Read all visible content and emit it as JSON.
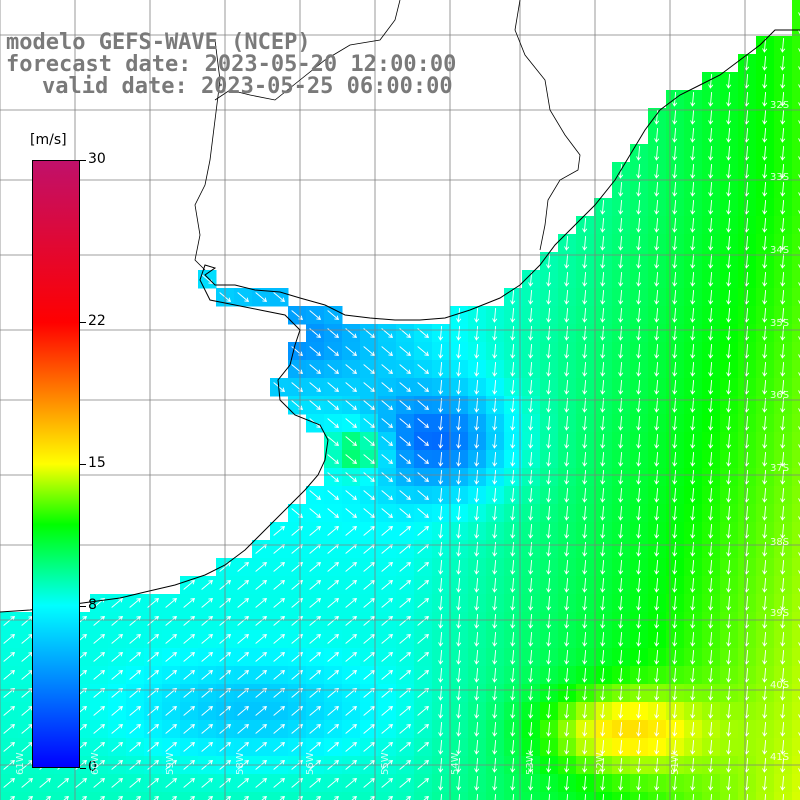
{
  "titles": {
    "line1": "modelo GEFS-WAVE (NCEP)",
    "line2": "forecast date: 2023-05-20 12:00:00",
    "line3": "valid date: 2023-05-25 06:00:00"
  },
  "colorbar": {
    "unit": "[m/s]",
    "ticks": [
      "30",
      "22",
      "15",
      "8",
      "0"
    ],
    "tick_values": [
      30,
      22,
      15,
      8,
      0
    ],
    "min": 0,
    "max": 30,
    "stops": [
      {
        "value": 0,
        "color": "#0000ff"
      },
      {
        "value": 8,
        "color": "#00ffff"
      },
      {
        "value": 12,
        "color": "#00ff00"
      },
      {
        "value": 15,
        "color": "#ffff00"
      },
      {
        "value": 22,
        "color": "#ff0000"
      },
      {
        "value": 30,
        "color": "#c0106a"
      }
    ]
  },
  "map": {
    "lat_labels": [
      "32S",
      "33S",
      "34S",
      "35S",
      "36S",
      "37S",
      "38S",
      "39S",
      "40S",
      "41S"
    ],
    "lat_values": [
      -32,
      -33,
      -34,
      -35,
      -36,
      -37,
      -38,
      -39,
      -40,
      -41
    ],
    "lon_labels": [
      "61W",
      "60W",
      "59W",
      "58W",
      "56W",
      "55W",
      "54W",
      "53W",
      "52W",
      "51W"
    ],
    "land_color": "#ffffff",
    "grid_color": "#888888",
    "coast_color": "#000000",
    "arrow_color": "#ffffff"
  }
}
